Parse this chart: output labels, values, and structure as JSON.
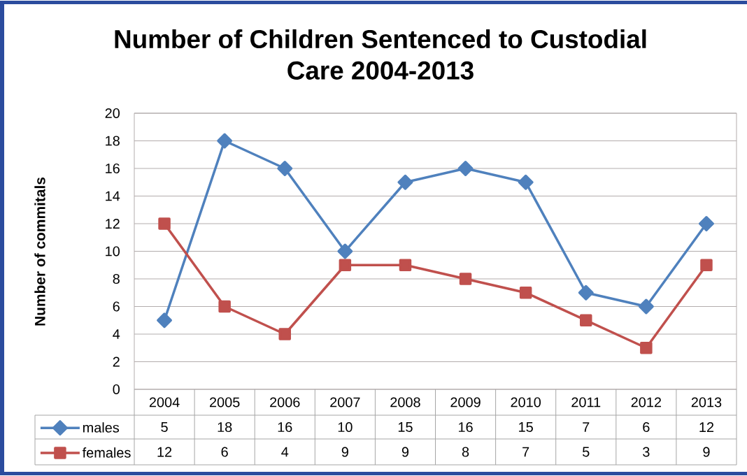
{
  "chart_data": {
    "type": "line",
    "title": "Number of Children Sentenced to Custodial Care 2004-2013",
    "ylabel": "Number of commitals",
    "categories": [
      "2004",
      "2005",
      "2006",
      "2007",
      "2008",
      "2009",
      "2010",
      "2011",
      "2012",
      "2013"
    ],
    "series": [
      {
        "name": "males",
        "color": "#4f81bd",
        "marker": "diamond",
        "values": [
          5,
          18,
          16,
          10,
          15,
          16,
          15,
          7,
          6,
          12
        ]
      },
      {
        "name": "females",
        "color": "#c0504d",
        "marker": "square",
        "values": [
          12,
          6,
          4,
          9,
          9,
          8,
          7,
          5,
          3,
          9
        ]
      }
    ],
    "ylim": [
      0,
      20
    ],
    "yticks": [
      0,
      2,
      4,
      6,
      8,
      10,
      12,
      14,
      16,
      18,
      20
    ],
    "grid": "y",
    "legend": "bottom left",
    "data_labels": true
  }
}
